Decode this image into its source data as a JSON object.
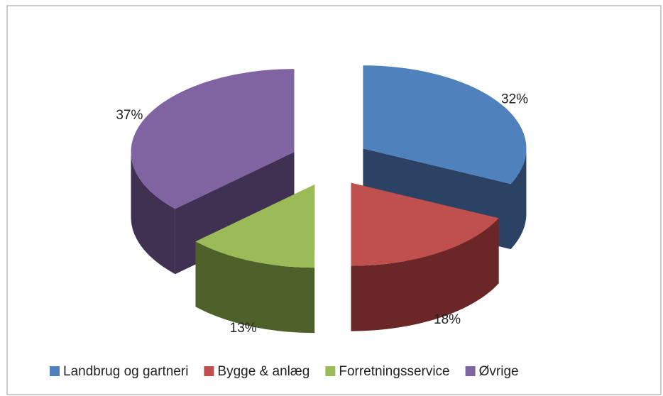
{
  "chart_data": {
    "type": "pie3d",
    "categories": [
      "Landbrug og gartneri",
      "Bygge & anlæg",
      "Forretningsservice",
      "Øvrige"
    ],
    "values": [
      32,
      18,
      13,
      37
    ],
    "value_labels": [
      "32%",
      "18%",
      "13%",
      "37%"
    ],
    "colors": [
      "#4f81bd",
      "#c0504d",
      "#9bbb59",
      "#8064a2"
    ],
    "side_colors": [
      "#2c4264",
      "#6b2727",
      "#4e612a",
      "#403152"
    ],
    "legend": "bottom"
  }
}
